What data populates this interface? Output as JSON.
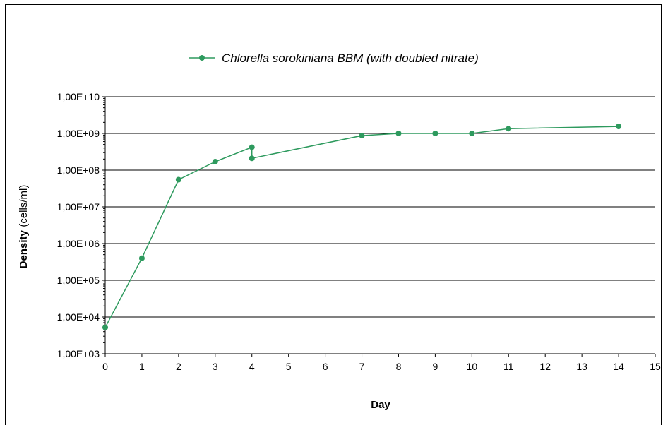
{
  "chart_data": {
    "type": "line",
    "title": "",
    "xlabel": "Day",
    "ylabel": "Density",
    "ylabel_unit": "(cells/ml)",
    "yscale": "log",
    "xlim": [
      0,
      15
    ],
    "ylim": [
      1000,
      10000000000
    ],
    "x_ticks": [
      "0",
      "1",
      "2",
      "3",
      "4",
      "5",
      "6",
      "7",
      "8",
      "9",
      "10",
      "11",
      "12",
      "13",
      "14",
      "15"
    ],
    "y_ticks": [
      "1,00E+03",
      "1,00E+04",
      "1,00E+05",
      "1,00E+06",
      "1,00E+07",
      "1,00E+08",
      "1,00E+09",
      "1,00E+10"
    ],
    "grid": "horizontal",
    "legend_position": "top",
    "series": [
      {
        "name": "Chlorella sorokiniana BBM (with doubled nitrate)",
        "color": "#2e9a5e",
        "marker": "circle",
        "x": [
          0,
          1,
          2,
          3,
          4,
          4,
          7,
          8,
          9,
          10,
          11,
          14
        ],
        "y": [
          5200,
          400000,
          55000000,
          170000000,
          420000000,
          210000000,
          870000000,
          1000000000,
          1000000000,
          1000000000,
          1350000000,
          1550000000
        ]
      }
    ]
  }
}
